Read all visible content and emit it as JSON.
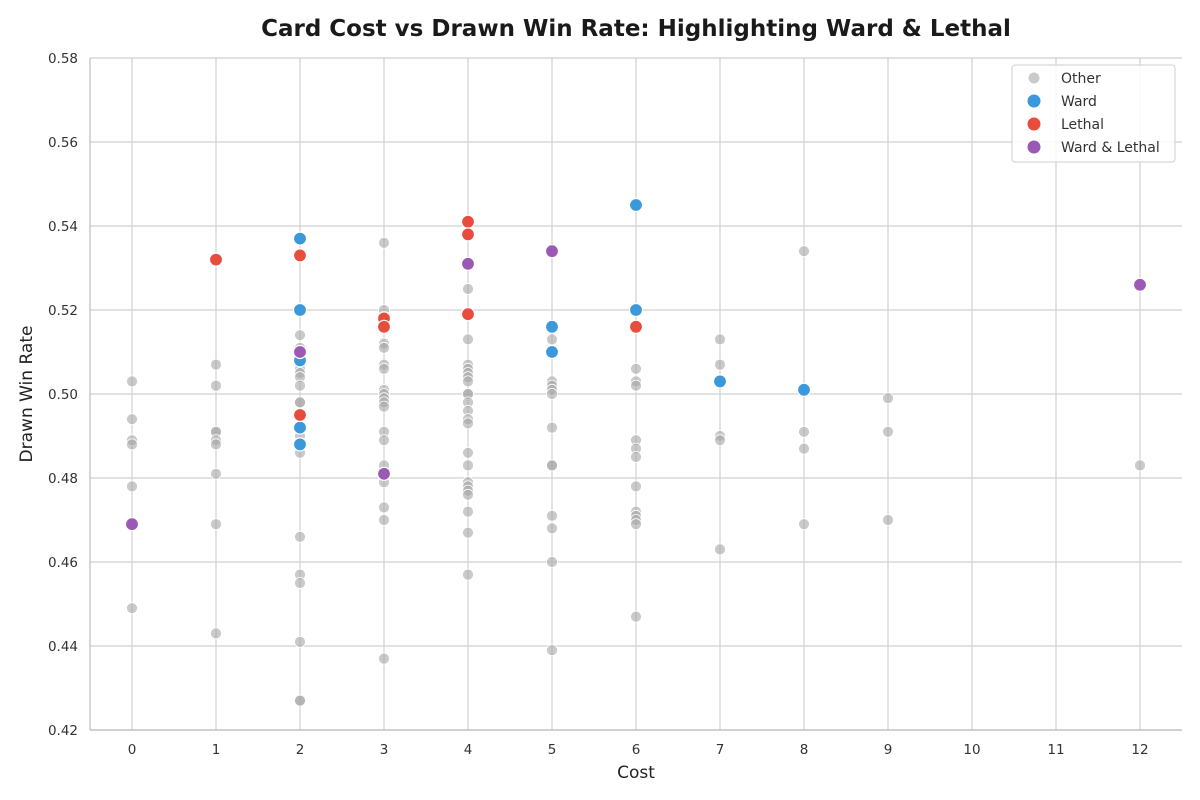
{
  "chart_data": {
    "type": "scatter",
    "title": "Card Cost vs Drawn Win Rate: Highlighting Ward & Lethal",
    "xlabel": "Cost",
    "ylabel": "Drawn Win Rate",
    "xlim": [
      -0.5,
      12.5
    ],
    "ylim": [
      0.42,
      0.58
    ],
    "xticks": [
      0,
      1,
      2,
      3,
      4,
      5,
      6,
      7,
      8,
      9,
      10,
      11,
      12
    ],
    "yticks": [
      0.42,
      0.44,
      0.46,
      0.48,
      0.5,
      0.52,
      0.54,
      0.56,
      0.58
    ],
    "grid": true,
    "legend_position": "top-right",
    "series": [
      {
        "name": "Other",
        "color": "#a6a6a6",
        "points": [
          [
            0,
            0.503
          ],
          [
            0,
            0.494
          ],
          [
            0,
            0.489
          ],
          [
            0,
            0.488
          ],
          [
            0,
            0.478
          ],
          [
            0,
            0.449
          ],
          [
            1,
            0.507
          ],
          [
            1,
            0.502
          ],
          [
            1,
            0.491
          ],
          [
            1,
            0.491
          ],
          [
            1,
            0.489
          ],
          [
            1,
            0.488
          ],
          [
            1,
            0.481
          ],
          [
            1,
            0.469
          ],
          [
            1,
            0.443
          ],
          [
            2,
            0.514
          ],
          [
            2,
            0.511
          ],
          [
            2,
            0.508
          ],
          [
            2,
            0.506
          ],
          [
            2,
            0.505
          ],
          [
            2,
            0.504
          ],
          [
            2,
            0.502
          ],
          [
            2,
            0.498
          ],
          [
            2,
            0.498
          ],
          [
            2,
            0.49
          ],
          [
            2,
            0.488
          ],
          [
            2,
            0.486
          ],
          [
            2,
            0.466
          ],
          [
            2,
            0.457
          ],
          [
            2,
            0.455
          ],
          [
            2,
            0.441
          ],
          [
            2,
            0.427
          ],
          [
            2,
            0.427
          ],
          [
            3,
            0.536
          ],
          [
            3,
            0.52
          ],
          [
            3,
            0.512
          ],
          [
            3,
            0.511
          ],
          [
            3,
            0.507
          ],
          [
            3,
            0.506
          ],
          [
            3,
            0.501
          ],
          [
            3,
            0.5
          ],
          [
            3,
            0.499
          ],
          [
            3,
            0.498
          ],
          [
            3,
            0.497
          ],
          [
            3,
            0.491
          ],
          [
            3,
            0.489
          ],
          [
            3,
            0.483
          ],
          [
            3,
            0.479
          ],
          [
            3,
            0.473
          ],
          [
            3,
            0.47
          ],
          [
            3,
            0.437
          ],
          [
            4,
            0.525
          ],
          [
            4,
            0.513
          ],
          [
            4,
            0.507
          ],
          [
            4,
            0.506
          ],
          [
            4,
            0.505
          ],
          [
            4,
            0.504
          ],
          [
            4,
            0.503
          ],
          [
            4,
            0.5
          ],
          [
            4,
            0.5
          ],
          [
            4,
            0.498
          ],
          [
            4,
            0.496
          ],
          [
            4,
            0.494
          ],
          [
            4,
            0.493
          ],
          [
            4,
            0.486
          ],
          [
            4,
            0.483
          ],
          [
            4,
            0.479
          ],
          [
            4,
            0.478
          ],
          [
            4,
            0.477
          ],
          [
            4,
            0.476
          ],
          [
            4,
            0.472
          ],
          [
            4,
            0.467
          ],
          [
            4,
            0.457
          ],
          [
            5,
            0.513
          ],
          [
            5,
            0.503
          ],
          [
            5,
            0.502
          ],
          [
            5,
            0.501
          ],
          [
            5,
            0.5
          ],
          [
            5,
            0.492
          ],
          [
            5,
            0.483
          ],
          [
            5,
            0.483
          ],
          [
            5,
            0.471
          ],
          [
            5,
            0.468
          ],
          [
            5,
            0.46
          ],
          [
            5,
            0.439
          ],
          [
            6,
            0.506
          ],
          [
            6,
            0.503
          ],
          [
            6,
            0.502
          ],
          [
            6,
            0.489
          ],
          [
            6,
            0.487
          ],
          [
            6,
            0.485
          ],
          [
            6,
            0.478
          ],
          [
            6,
            0.472
          ],
          [
            6,
            0.471
          ],
          [
            6,
            0.47
          ],
          [
            6,
            0.469
          ],
          [
            6,
            0.447
          ],
          [
            7,
            0.513
          ],
          [
            7,
            0.507
          ],
          [
            7,
            0.49
          ],
          [
            7,
            0.489
          ],
          [
            7,
            0.463
          ],
          [
            8,
            0.534
          ],
          [
            8,
            0.491
          ],
          [
            8,
            0.487
          ],
          [
            8,
            0.469
          ],
          [
            9,
            0.499
          ],
          [
            9,
            0.491
          ],
          [
            9,
            0.47
          ],
          [
            12,
            0.483
          ]
        ]
      },
      {
        "name": "Ward",
        "color": "#3a98db",
        "points": [
          [
            2,
            0.537
          ],
          [
            2,
            0.537
          ],
          [
            2,
            0.52
          ],
          [
            2,
            0.508
          ],
          [
            2,
            0.492
          ],
          [
            2,
            0.488
          ],
          [
            5,
            0.516
          ],
          [
            5,
            0.51
          ],
          [
            6,
            0.545
          ],
          [
            6,
            0.52
          ],
          [
            7,
            0.503
          ],
          [
            8,
            0.501
          ]
        ]
      },
      {
        "name": "Lethal",
        "color": "#e74c3c",
        "points": [
          [
            1,
            0.532
          ],
          [
            2,
            0.533
          ],
          [
            2,
            0.495
          ],
          [
            3,
            0.518
          ],
          [
            3,
            0.516
          ],
          [
            4,
            0.541
          ],
          [
            4,
            0.538
          ],
          [
            4,
            0.519
          ],
          [
            6,
            0.516
          ]
        ]
      },
      {
        "name": "Ward & Lethal",
        "color": "#9b59b6",
        "points": [
          [
            0,
            0.469
          ],
          [
            2,
            0.51
          ],
          [
            3,
            0.481
          ],
          [
            4,
            0.531
          ],
          [
            5,
            0.534
          ],
          [
            12,
            0.526
          ]
        ]
      }
    ]
  }
}
